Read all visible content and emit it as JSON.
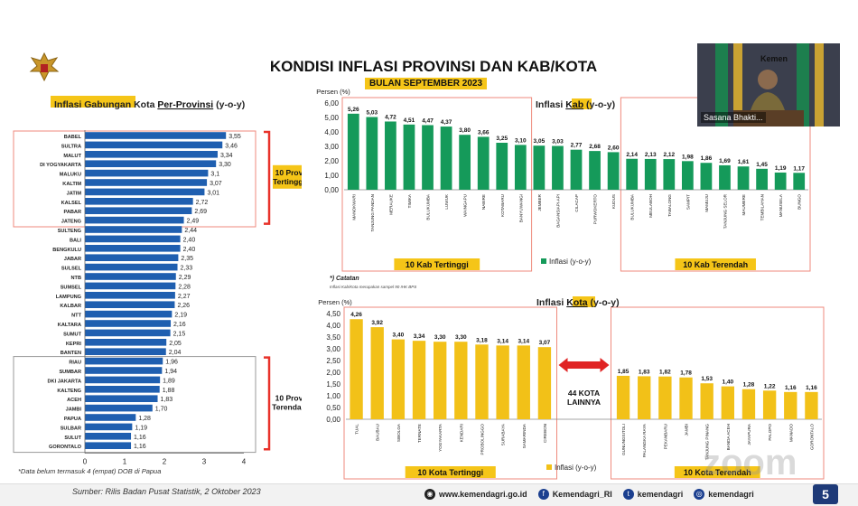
{
  "title": "KONDISI INFLASI PROVINSI DAN KAB/KOTA",
  "subtitle": "BULAN SEPTEMBER 2023",
  "video": {
    "name": "Sasana Bhakti...",
    "tag": "Kemen"
  },
  "watermark": "zoom",
  "page_number": "5",
  "footer": {
    "source": "Sumber: Rilis Badan Pusat Statistik, 2 Oktober 2023",
    "links": [
      {
        "icon": "globe",
        "label": "www.kemendagri.go.id"
      },
      {
        "icon": "f",
        "label": "Kemendagri_RI"
      },
      {
        "icon": "t",
        "label": "kemendagri"
      },
      {
        "icon": "i",
        "label": "kemendagri"
      }
    ]
  },
  "colors": {
    "prov_bar": "#1f5fb0",
    "kab_bar": "#159a5a",
    "kota_bar": "#f2c118",
    "highlight_box": "#ef8a7c",
    "bracket": "#e8322a",
    "label_highlight": "#f5c518",
    "arrow": "#e02424"
  },
  "chart_data": [
    {
      "type": "bar",
      "orientation": "horizontal",
      "title": "Inflasi Gabungan Kota Per-Provinsi (y-o-y)",
      "title_parts": [
        "Inflasi Gabungan Kota ",
        "Per-Provinsi",
        " (y-o-y)"
      ],
      "categories": [
        "BABEL",
        "SULTRA",
        "MALUT",
        "DI YOGYAKARTA",
        "MALUKU",
        "KALTIM",
        "JATIM",
        "KALSEL",
        "PABAR",
        "JATENG",
        "SULTENG",
        "BALI",
        "BENGKULU",
        "JABAR",
        "SULSEL",
        "NTB",
        "SUMSEL",
        "LAMPUNG",
        "KALBAR",
        "NTT",
        "KALTARA",
        "SUMUT",
        "KEPRI",
        "BANTEN",
        "RIAU",
        "SUMBAR",
        "DKI JAKARTA",
        "KALTENG",
        "ACEH",
        "JAMBI",
        "PAPUA",
        "SULBAR",
        "SULUT",
        "GORONTALO"
      ],
      "values": [
        3.55,
        3.46,
        3.34,
        3.3,
        3.1,
        3.07,
        3.01,
        2.72,
        2.69,
        2.49,
        2.44,
        2.4,
        2.4,
        2.35,
        2.33,
        2.29,
        2.28,
        2.27,
        2.26,
        2.19,
        2.16,
        2.15,
        2.05,
        2.04,
        1.96,
        1.94,
        1.89,
        1.88,
        1.83,
        1.7,
        1.28,
        1.19,
        1.16,
        1.16
      ],
      "value_labels": [
        "3,55",
        "3,46",
        "3,34",
        "3,30",
        "3,1",
        "3,07",
        "3,01",
        "2,72",
        "2,69",
        "2,49",
        "2,44",
        "2,40",
        "2,40",
        "2,35",
        "2,33",
        "2,29",
        "2,28",
        "2,27",
        "2,26",
        "2,19",
        "2,16",
        "2,15",
        "2,05",
        "2,04",
        "1,96",
        "1,94",
        "1,89",
        "1,88",
        "1,83",
        "1,70",
        "1,28",
        "1,19",
        "1,16",
        "1,16"
      ],
      "xlim": [
        0,
        4
      ],
      "xticks": [
        "0",
        "1",
        "2",
        "3",
        "4"
      ],
      "groups": [
        {
          "label": "10 Prov Tertinggi",
          "start": 0,
          "end": 9
        },
        {
          "label": "10 Prov Terendah",
          "start": 24,
          "end": 33
        }
      ],
      "note": "*Data belum termasuk 4 (empat) DOB di Papua"
    },
    {
      "type": "bar",
      "title": "Inflasi Kab (y-o-y)",
      "title_parts": [
        "Inflasi ",
        "Kab",
        " (y-o-y)"
      ],
      "ylabel": "Persen (%)",
      "ylim": [
        0,
        6
      ],
      "yticks": [
        "0,00",
        "1,00",
        "2,00",
        "3,00",
        "4,00",
        "5,00",
        "6,00"
      ],
      "legend": "Inflasi (y-o-y)",
      "categories": [
        "MANOKWARI",
        "TANJUNG PANDAN",
        "MERAUKE",
        "TIMIKA",
        "BULUKUMBA",
        "LUWUK",
        "WAINGAPU",
        "NABIRE",
        "KOTABARU",
        "BANYUWANGI",
        "JEMBER",
        "BAGANSIAPI-API",
        "CILACAP",
        "PURWOKERTO",
        "KUDUS",
        "BULUKUMBA",
        "MEULABOH",
        "TABALONG",
        "SAMPIT",
        "MAMUJU",
        "TANJUNG SELOR",
        "MAUMERE",
        "TEMBILAHAN",
        "MANUSELA",
        "BUNGO"
      ],
      "values": [
        5.26,
        5.03,
        4.72,
        4.51,
        4.47,
        4.37,
        3.8,
        3.66,
        3.25,
        3.1,
        3.05,
        3.03,
        2.77,
        2.68,
        2.6,
        2.14,
        2.13,
        2.12,
        1.98,
        1.86,
        1.69,
        1.61,
        1.45,
        1.19,
        1.17
      ],
      "value_labels": [
        "5,26",
        "5,03",
        "4,72",
        "4,51",
        "4,47",
        "4,37",
        "3,80",
        "3,66",
        "3,25",
        "3,10",
        "3,05",
        "3,03",
        "2,77",
        "2,68",
        "2,60",
        "2,14",
        "2,13",
        "2,12",
        "1,98",
        "1,86",
        "1,69",
        "1,61",
        "1,45",
        "1,19",
        "1,17"
      ],
      "groups": [
        {
          "label": "10 Kab Tertinggi",
          "start": 0,
          "end": 9
        },
        {
          "label": "10 Kab Terendah",
          "start": 15,
          "end": 24
        }
      ],
      "note": "*) Catatan",
      "note2": "Inflasi Kab/Kota merupakan sampel 90 IHK BPS"
    },
    {
      "type": "bar",
      "title": "Inflasi Kota (y-o-y)",
      "title_parts": [
        "Inflasi ",
        "Kota",
        " (y-o-y)"
      ],
      "ylabel": "Persen (%)",
      "ylim": [
        0,
        4.5
      ],
      "yticks": [
        "0,00",
        "0,50",
        "1,00",
        "1,50",
        "2,00",
        "2,50",
        "3,00",
        "3,50",
        "4,00",
        "4,50"
      ],
      "legend": "Inflasi (y-o-y)",
      "categories": [
        "TUAL",
        "BAUBAU",
        "SIBOLGA",
        "TERNATE",
        "YOGYAKARTA",
        "KENDARI",
        "PROBOLINGGO",
        "SURABAYA",
        "SAMARINDA",
        "CIREBON",
        "GUNUNGSITOLI",
        "PALANGKA RAYA",
        "PEKANBARU",
        "JAMBI",
        "TANJUNG PINANG",
        "BANDA ACEH",
        "JAYAPURA",
        "PALOPO",
        "MANADO",
        "GORONTALO"
      ],
      "values": [
        4.26,
        3.92,
        3.4,
        3.34,
        3.3,
        3.3,
        3.18,
        3.14,
        3.14,
        3.07,
        1.85,
        1.83,
        1.82,
        1.78,
        1.53,
        1.4,
        1.28,
        1.22,
        1.16,
        1.16
      ],
      "value_labels": [
        "4,26",
        "3,92",
        "3,40",
        "3,34",
        "3,30",
        "3,30",
        "3,18",
        "3,14",
        "3,14",
        "3,07",
        "1,85",
        "1,83",
        "1,82",
        "1,78",
        "1,53",
        "1,40",
        "1,28",
        "1,22",
        "1,16",
        "1,16"
      ],
      "groups": [
        {
          "label": "10 Kota Tertinggi",
          "start": 0,
          "end": 9
        },
        {
          "label": "10 Kota Terendah",
          "start": 10,
          "end": 19
        }
      ],
      "gap_label": [
        "44 KOTA",
        "LAINNYA"
      ]
    }
  ]
}
